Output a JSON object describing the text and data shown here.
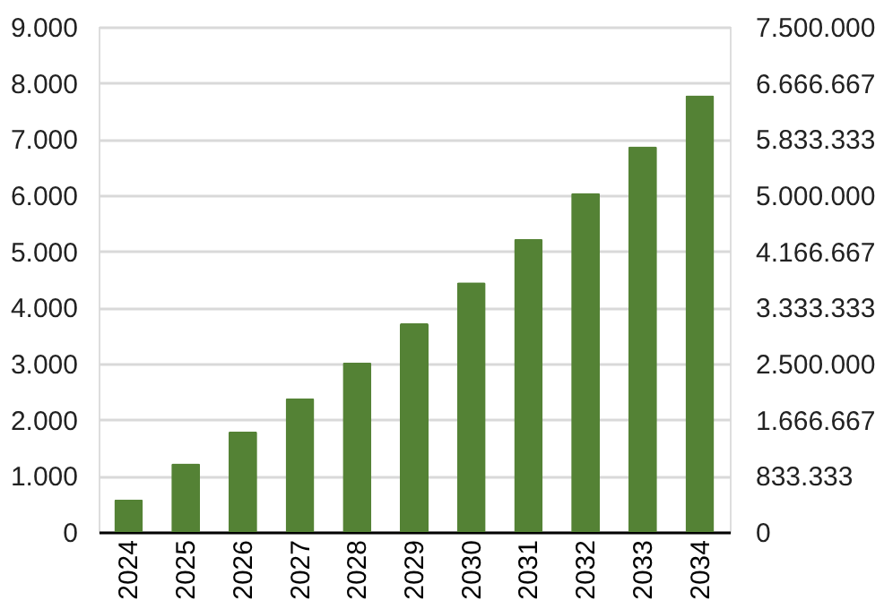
{
  "chart_data": {
    "type": "bar",
    "categories": [
      "2024",
      "2025",
      "2026",
      "2027",
      "2028",
      "2029",
      "2030",
      "2031",
      "2032",
      "2033",
      "2034"
    ],
    "values": [
      580,
      1220,
      1790,
      2380,
      3020,
      3720,
      4450,
      5220,
      6040,
      6870,
      7780
    ],
    "color": "#548235",
    "ylim": [
      0,
      9000
    ],
    "yticks": [
      0,
      {
        "value": 1000,
        "label": "1.000"
      },
      {
        "value": 2000,
        "label": "2.000"
      },
      {
        "value": 3000,
        "label": "3.000"
      },
      {
        "value": 4000,
        "label": "4.000"
      },
      {
        "value": 5000,
        "label": "5.000"
      },
      {
        "value": 6000,
        "label": "6.000"
      },
      {
        "value": 7000,
        "label": "7.000"
      },
      {
        "value": 8000,
        "label": "8.000"
      },
      {
        "value": 9000,
        "label": "9.000"
      }
    ],
    "y2lim": [
      0,
      7500000
    ],
    "y2ticks": [
      0,
      {
        "value": 833333.333,
        "label": "833.333"
      },
      {
        "value": 1666666.667,
        "label": "1.666.667"
      },
      {
        "value": 2500000,
        "label": "2.500.000"
      },
      {
        "value": 3333333.333,
        "label": "3.333.333"
      },
      {
        "value": 4166666.667,
        "label": "4.166.667"
      },
      {
        "value": 5000000,
        "label": "5.000.000"
      },
      {
        "value": 5833333.333,
        "label": "5.833.333"
      },
      {
        "value": 6666666.667,
        "label": "6.666.667"
      },
      {
        "value": 7500000,
        "label": "7.500.000"
      }
    ],
    "grid": "y"
  }
}
